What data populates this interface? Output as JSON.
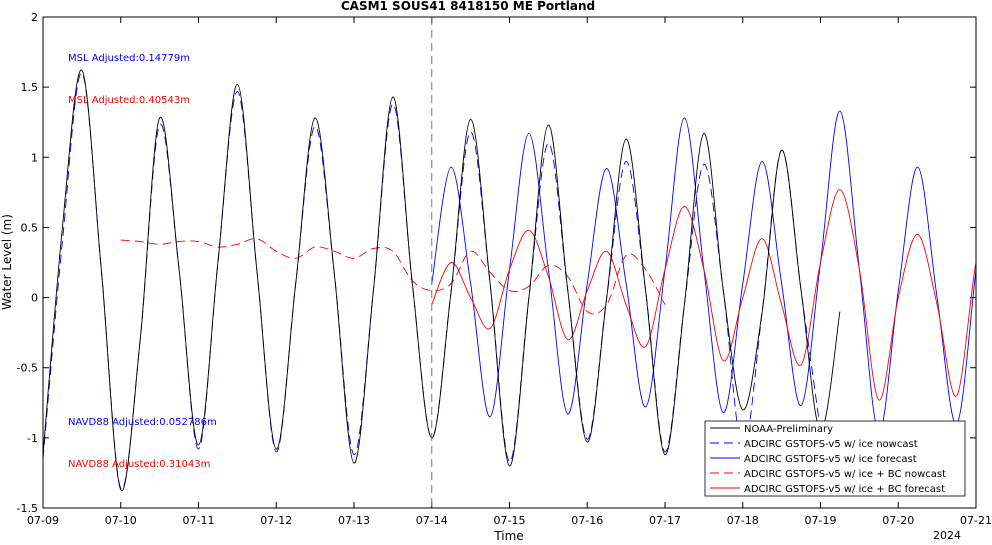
{
  "chart_data": {
    "type": "line",
    "title": "CASM1 SOUS41 8418150 ME Portland",
    "xlabel": "Time",
    "ylabel": "Water Level (m)",
    "x_ticks": [
      "07-09",
      "07-10",
      "07-11",
      "07-12",
      "07-13",
      "07-14",
      "07-15",
      "07-16",
      "07-17",
      "07-18",
      "07-19",
      "07-20",
      "07-21"
    ],
    "x_year_label": "2024",
    "xlim_days": [
      9,
      21
    ],
    "ylim": [
      -1.5,
      2
    ],
    "y_ticks": [
      -1.5,
      -1,
      -0.5,
      0,
      0.5,
      1,
      1.5,
      2
    ],
    "y_tick_labels": [
      "-1.5",
      "-1",
      "-0.5",
      "0",
      "0.5",
      "1",
      "1.5",
      "2"
    ],
    "nowcast_forecast_divider_day": 14,
    "annotations": [
      {
        "text": "MSL Adjusted:0.14779m",
        "color": "#0000ff"
      },
      {
        "text": "MSL Adjusted:0.40543m",
        "color": "#ff0000"
      },
      {
        "text": "NAVD88 Adjusted:0.052786m",
        "color": "#0000ff"
      },
      {
        "text": "NAVD88 Adjusted:0.31043m",
        "color": "#ff0000"
      }
    ],
    "legend_position": "bottom-right",
    "series": [
      {
        "name": "NOAA-Preliminary",
        "color": "#000000",
        "style": "solid",
        "x_start": 9.0,
        "x_end": 14.5,
        "dx": 0.25,
        "values": [
          -1.12,
          0.5,
          1.62,
          0.2,
          -1.37,
          -0.3,
          1.28,
          0.2,
          -1.05,
          0.25,
          1.52,
          0.2,
          -1.08,
          0.1,
          1.28,
          0.15,
          -1.18,
          0.05,
          1.43,
          0.1,
          -1.0,
          0.05,
          1.27,
          0.1,
          -1.2,
          0.0,
          1.23,
          0.05,
          -1.03,
          0.0,
          1.13,
          0.05,
          -1.12,
          -0.05,
          1.17,
          0.05,
          -0.8,
          -0.1,
          1.05,
          0.05,
          -0.95,
          -0.1
        ]
      },
      {
        "name": "ADCIRC GSTOFS-v5 w/ ice nowcast",
        "color": "#0000ff",
        "style": "dashed",
        "x_start": 9.0,
        "x_end": 14.0,
        "dx": 0.25,
        "values": [
          -1.15,
          0.4,
          1.6,
          0.2,
          -1.36,
          -0.3,
          1.23,
          0.2,
          -1.08,
          0.25,
          1.47,
          0.2,
          -1.1,
          0.1,
          1.22,
          0.15,
          -1.12,
          0.05,
          1.38,
          0.1,
          -1.0,
          0.05,
          1.18,
          0.1,
          -1.17,
          0.0,
          1.1,
          0.05,
          -1.01,
          0.0,
          0.97,
          0.05,
          -1.1,
          -0.05,
          0.95,
          0.05,
          -1.08,
          -0.1,
          1.05,
          0.05,
          -0.95
        ]
      },
      {
        "name": "ADCIRC GSTOFS-v5 w/ ice forecast",
        "color": "#0000ff",
        "style": "solid",
        "x_start": 14.0,
        "x_end": 21.0,
        "dx": 0.25,
        "values": [
          0.1,
          0.93,
          0.1,
          -0.85,
          0.2,
          1.17,
          0.2,
          -0.83,
          0.1,
          0.92,
          0.1,
          -0.78,
          0.2,
          1.28,
          0.2,
          -0.82,
          0.1,
          0.97,
          0.1,
          -0.77,
          0.25,
          1.33,
          0.2,
          -0.96,
          0.05,
          0.93,
          0.0,
          -0.9,
          0.2,
          1.43,
          0.2,
          -1.05,
          0.05,
          1.02,
          0.0,
          -1.0,
          0.2,
          1.52,
          0.2,
          -1.15,
          0.05,
          1.05,
          0.0,
          -1.1,
          0.3,
          1.65,
          0.2,
          -1.2,
          0.05,
          1.2,
          0.0,
          -1.25,
          0.32
        ]
      },
      {
        "name": "ADCIRC GSTOFS-v5 w/ ice + BC nowcast",
        "color": "#ff0000",
        "style": "dashed",
        "x_start": 10.0,
        "x_end": 14.0,
        "dx": 0.25,
        "values": [
          0.41,
          0.4,
          0.38,
          0.4,
          0.4,
          0.36,
          0.38,
          0.42,
          0.33,
          0.28,
          0.36,
          0.33,
          0.28,
          0.35,
          0.33,
          0.12,
          0.05,
          0.1,
          0.33,
          0.18,
          0.05,
          0.08,
          0.23,
          0.15,
          -0.1,
          -0.05,
          0.3,
          0.2,
          -0.05
        ]
      },
      {
        "name": "ADCIRC GSTOFS-v5 w/ ice + BC forecast",
        "color": "#ff0000",
        "style": "solid",
        "x_start": 14.0,
        "x_end": 21.0,
        "dx": 0.25,
        "values": [
          -0.05,
          0.25,
          0.0,
          -0.22,
          0.2,
          0.48,
          0.15,
          -0.3,
          0.05,
          0.33,
          -0.05,
          -0.35,
          0.2,
          0.65,
          0.2,
          -0.45,
          0.0,
          0.42,
          -0.05,
          -0.48,
          0.25,
          0.77,
          0.2,
          -0.73,
          0.0,
          0.45,
          -0.05,
          -0.7,
          0.25,
          0.8,
          0.2,
          -0.95,
          0.0,
          0.52,
          -0.05,
          -0.9,
          0.3,
          0.98,
          0.25,
          -1.1,
          0.0,
          0.6,
          -0.05,
          -1.05,
          0.35,
          1.08,
          0.25,
          -1.25,
          0.0,
          0.63,
          -0.05,
          -1.28,
          0.05
        ]
      }
    ]
  }
}
